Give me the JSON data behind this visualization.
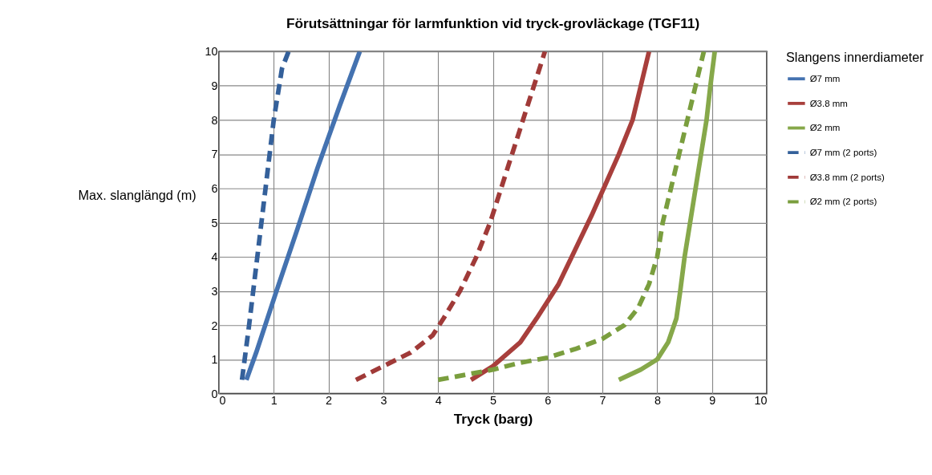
{
  "chart_data": {
    "type": "line",
    "title": "Förutsättningar för larmfunktion vid tryck-grovläckage (TGF11)",
    "xlabel": "Tryck (barg)",
    "ylabel": "Max. slanglängd (m)",
    "legend_title": "Slangens innerdiameter",
    "xlim": [
      0,
      10
    ],
    "ylim": [
      0,
      10
    ],
    "xticks": [
      0,
      1,
      2,
      3,
      4,
      5,
      6,
      7,
      8,
      9,
      10
    ],
    "yticks": [
      0,
      1,
      2,
      3,
      4,
      5,
      6,
      7,
      8,
      9,
      10
    ],
    "grid": true,
    "legend": "right",
    "series": [
      {
        "name": "Ø7 mm",
        "color": "#4472b0",
        "line_style": "solid",
        "x": [
          0.5,
          0.68,
          1.05,
          1.43,
          1.8,
          2.2,
          2.57
        ],
        "values": [
          0.4,
          1.2,
          3.0,
          4.8,
          6.6,
          8.4,
          10
        ]
      },
      {
        "name": "Ø3.8 mm",
        "color": "#a83f3c",
        "line_style": "solid",
        "x": [
          4.6,
          5.0,
          5.5,
          5.8,
          6.2,
          6.5,
          6.8,
          7.05,
          7.3,
          7.55,
          7.7,
          7.85
        ],
        "values": [
          0.4,
          0.8,
          1.5,
          2.2,
          3.2,
          4.2,
          5.2,
          6.1,
          7.0,
          8.0,
          9.0,
          10
        ]
      },
      {
        "name": "Ø2 mm",
        "color": "#86a84a",
        "line_style": "solid",
        "x": [
          7.3,
          7.7,
          8.0,
          8.2,
          8.35,
          8.42,
          8.5,
          8.6,
          8.7,
          8.8,
          8.9,
          8.97,
          9.05
        ],
        "values": [
          0.4,
          0.7,
          1.0,
          1.5,
          2.2,
          3.0,
          4.0,
          5.0,
          6.0,
          7.0,
          8.0,
          9.0,
          10
        ]
      },
      {
        "name": "Ø7 mm (2 ports)",
        "color": "#34609a",
        "line_style": "dashed",
        "x": [
          0.42,
          0.55,
          0.7,
          0.85,
          1.0,
          1.15,
          1.27
        ],
        "values": [
          0.4,
          2.0,
          4.0,
          6.0,
          8.0,
          9.5,
          10
        ]
      },
      {
        "name": "Ø3.8 mm (2 ports)",
        "color": "#a03a38",
        "line_style": "dashed",
        "x": [
          2.5,
          3.0,
          3.5,
          3.9,
          4.1,
          4.4,
          4.7,
          4.95,
          5.15,
          5.35,
          5.55,
          5.75,
          5.95
        ],
        "values": [
          0.4,
          0.8,
          1.2,
          1.7,
          2.2,
          3.0,
          4.0,
          5.0,
          6.0,
          7.0,
          8.0,
          9.0,
          10
        ]
      },
      {
        "name": "Ø2 mm (2 ports)",
        "color": "#7a9e3e",
        "line_style": "dashed",
        "x": [
          4.0,
          4.5,
          5.0,
          5.5,
          6.0,
          6.5,
          7.0,
          7.4,
          7.65,
          7.85,
          8.0,
          8.1,
          8.25,
          8.4,
          8.55,
          8.7,
          8.85
        ],
        "values": [
          0.4,
          0.55,
          0.7,
          0.9,
          1.05,
          1.3,
          1.6,
          2.0,
          2.5,
          3.2,
          4.0,
          5.0,
          6.0,
          7.0,
          8.0,
          9.0,
          10
        ]
      }
    ]
  }
}
